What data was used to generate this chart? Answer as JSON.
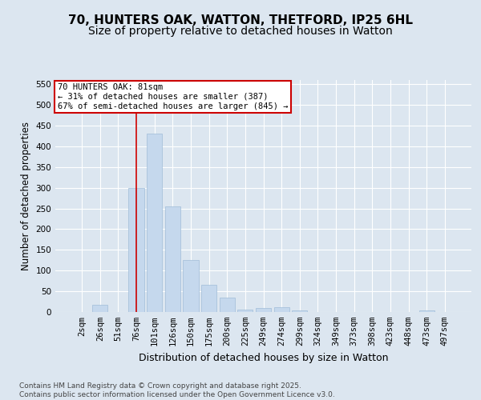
{
  "title": "70, HUNTERS OAK, WATTON, THETFORD, IP25 6HL",
  "subtitle": "Size of property relative to detached houses in Watton",
  "xlabel": "Distribution of detached houses by size in Watton",
  "ylabel": "Number of detached properties",
  "categories": [
    "2sqm",
    "26sqm",
    "51sqm",
    "76sqm",
    "101sqm",
    "126sqm",
    "150sqm",
    "175sqm",
    "200sqm",
    "225sqm",
    "249sqm",
    "274sqm",
    "299sqm",
    "324sqm",
    "349sqm",
    "373sqm",
    "398sqm",
    "423sqm",
    "448sqm",
    "473sqm",
    "497sqm"
  ],
  "values": [
    0,
    18,
    0,
    300,
    430,
    255,
    125,
    65,
    35,
    5,
    10,
    12,
    4,
    0,
    0,
    0,
    0,
    0,
    0,
    3,
    0
  ],
  "bar_color": "#c5d8ed",
  "bar_edge_color": "#a0bcd8",
  "background_color": "#dce6f0",
  "grid_color": "#ffffff",
  "property_line_x": 3.0,
  "annotation_text": "70 HUNTERS OAK: 81sqm\n← 31% of detached houses are smaller (387)\n67% of semi-detached houses are larger (845) →",
  "annotation_box_color": "#cc0000",
  "ylim": [
    0,
    560
  ],
  "yticks": [
    0,
    50,
    100,
    150,
    200,
    250,
    300,
    350,
    400,
    450,
    500,
    550
  ],
  "footer_line1": "Contains HM Land Registry data © Crown copyright and database right 2025.",
  "footer_line2": "Contains public sector information licensed under the Open Government Licence v3.0.",
  "title_fontsize": 11,
  "subtitle_fontsize": 10,
  "xlabel_fontsize": 9,
  "ylabel_fontsize": 8.5,
  "tick_fontsize": 7.5,
  "footer_fontsize": 6.5
}
